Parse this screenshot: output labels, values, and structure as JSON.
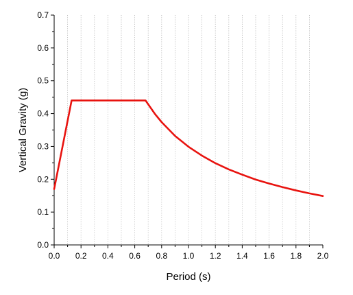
{
  "chart_data": {
    "type": "line",
    "title": "",
    "xlabel": "Period (s)",
    "ylabel": "Vertical Gravity (g)",
    "xlim": [
      0.0,
      2.0
    ],
    "ylim": [
      0.0,
      0.7
    ],
    "xticks": [
      "0.0",
      "0.2",
      "0.4",
      "0.6",
      "0.8",
      "1.0",
      "1.2",
      "1.4",
      "1.6",
      "1.8",
      "2.0"
    ],
    "yticks": [
      "0.0",
      "0.1",
      "0.2",
      "0.3",
      "0.4",
      "0.5",
      "0.6",
      "0.7"
    ],
    "grid": "vertical dotted",
    "legend": "none",
    "series": [
      {
        "color": "#e8130f",
        "x": [
          0.0,
          0.13,
          0.68,
          0.75,
          0.8,
          0.9,
          1.0,
          1.1,
          1.2,
          1.3,
          1.4,
          1.5,
          1.6,
          1.7,
          1.8,
          1.9,
          2.0
        ],
        "y": [
          0.17,
          0.44,
          0.44,
          0.399,
          0.374,
          0.332,
          0.299,
          0.272,
          0.249,
          0.23,
          0.214,
          0.199,
          0.187,
          0.176,
          0.166,
          0.157,
          0.149
        ]
      }
    ]
  }
}
